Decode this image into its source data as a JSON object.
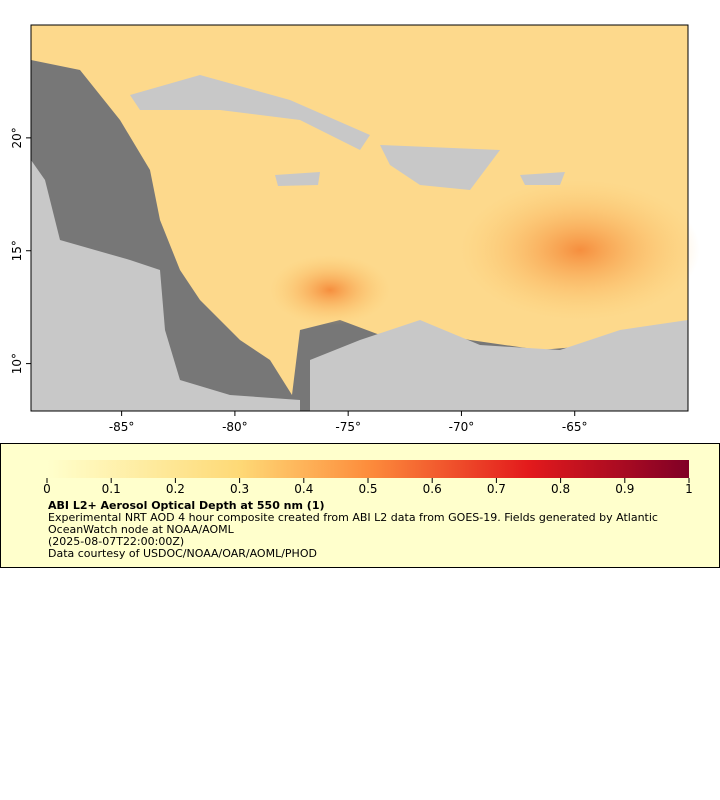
{
  "map": {
    "xlim": [
      -89,
      -60
    ],
    "ylim": [
      7.9,
      25
    ],
    "xticks": [
      {
        "value": -85,
        "label": "-85°"
      },
      {
        "value": -80,
        "label": "-80°"
      },
      {
        "value": -75,
        "label": "-75°"
      },
      {
        "value": -70,
        "label": "-70°"
      },
      {
        "value": -65,
        "label": "-65°"
      }
    ],
    "yticks": [
      {
        "value": 10,
        "label": "10°"
      },
      {
        "value": 15,
        "label": "15°"
      },
      {
        "value": 20,
        "label": "20°"
      }
    ]
  },
  "colorbar": {
    "lim": [
      0,
      1
    ],
    "ticks": [
      0,
      0.1,
      0.2,
      0.3,
      0.4,
      0.5,
      0.6,
      0.7,
      0.8,
      0.9,
      1
    ]
  },
  "caption": {
    "title": "ABI L2+ Aerosol Optical Depth at 550 nm (1)",
    "description": "Experimental NRT AOD 4 hour composite created from ABI L2 data from GOES-19. Fields generated by Atlantic OceanWatch node at NOAA/AOML",
    "timestamp": "(2025-08-07T22:00:00Z)",
    "credit": "Data courtesy of USDOC/NOAA/OAR/AOML/PHOD"
  }
}
